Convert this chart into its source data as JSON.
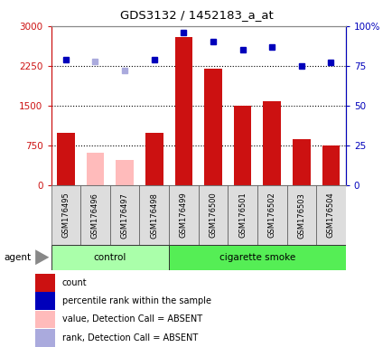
{
  "title": "GDS3132 / 1452183_a_at",
  "samples": [
    "GSM176495",
    "GSM176496",
    "GSM176497",
    "GSM176498",
    "GSM176499",
    "GSM176500",
    "GSM176501",
    "GSM176502",
    "GSM176503",
    "GSM176504"
  ],
  "counts": [
    1000,
    null,
    null,
    1000,
    2800,
    2200,
    1500,
    1580,
    870,
    760
  ],
  "counts_absent": [
    null,
    620,
    480,
    null,
    null,
    null,
    null,
    null,
    null,
    null
  ],
  "ranks": [
    79,
    null,
    null,
    79,
    96,
    90,
    85,
    87,
    75,
    77
  ],
  "ranks_absent": [
    null,
    78,
    72,
    null,
    null,
    null,
    null,
    null,
    null,
    null
  ],
  "groups": [
    "control",
    "control",
    "control",
    "control",
    "cigarette smoke",
    "cigarette smoke",
    "cigarette smoke",
    "cigarette smoke",
    "cigarette smoke",
    "cigarette smoke"
  ],
  "left_ylim": [
    0,
    3000
  ],
  "right_ylim": [
    0,
    100
  ],
  "left_yticks": [
    0,
    750,
    1500,
    2250,
    3000
  ],
  "right_yticks": [
    0,
    25,
    50,
    75,
    100
  ],
  "left_yticklabels": [
    "0",
    "750",
    "1500",
    "2250",
    "3000"
  ],
  "right_yticklabels": [
    "0",
    "25",
    "50",
    "75",
    "100%"
  ],
  "bar_color": "#cc1111",
  "bar_absent_color": "#ffbbbb",
  "dot_color": "#0000bb",
  "dot_absent_color": "#aaaadd",
  "ctrl_color": "#aaffaa",
  "smoke_color": "#55ee55",
  "legend_items": [
    {
      "label": "count",
      "color": "#cc1111"
    },
    {
      "label": "percentile rank within the sample",
      "color": "#0000bb"
    },
    {
      "label": "value, Detection Call = ABSENT",
      "color": "#ffbbbb"
    },
    {
      "label": "rank, Detection Call = ABSENT",
      "color": "#aaaadd"
    }
  ],
  "agent_label": "agent",
  "grid_color": "#000000"
}
